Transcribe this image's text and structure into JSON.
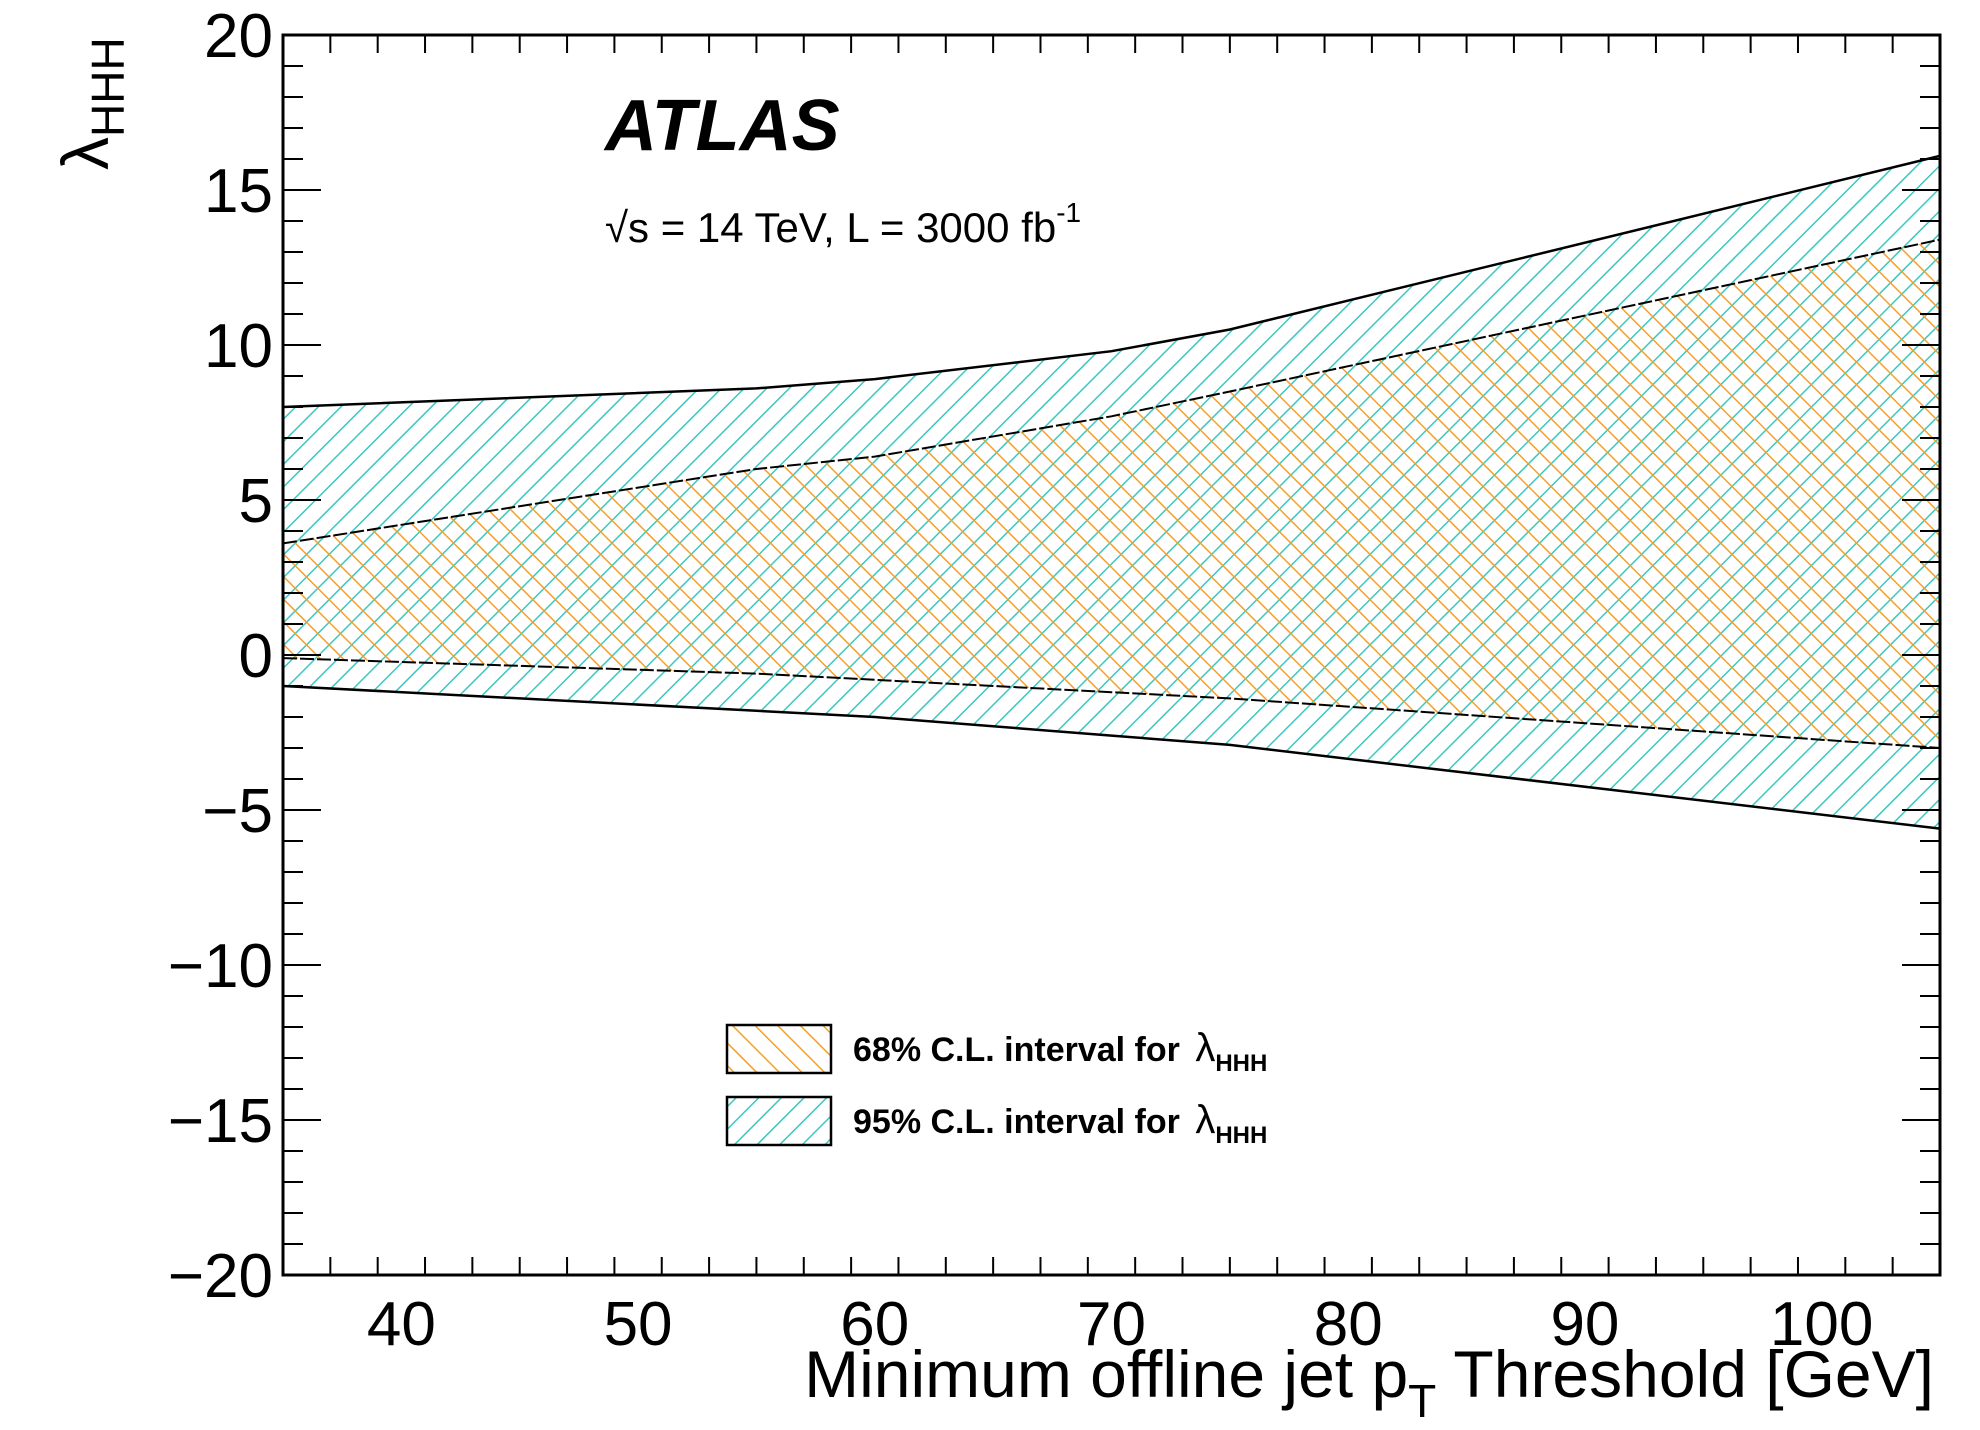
{
  "chart_data": {
    "type": "area",
    "title": "",
    "brand": "ATLAS",
    "energy_label": {
      "sqrt": "√s",
      "text": " = 14 TeV, L = 3000 fb",
      "sup": "-1"
    },
    "xlabel": {
      "main": "Minimum offline jet p",
      "sub": "T",
      "tail": " Threshold [GeV]"
    },
    "ylabel": {
      "main": "λ",
      "sub": "HHH"
    },
    "xlim": [
      35,
      105
    ],
    "ylim": [
      -20,
      20
    ],
    "x_ticks": [
      40,
      50,
      60,
      70,
      80,
      90,
      100
    ],
    "x_tick_labels": [
      "40",
      "50",
      "60",
      "70",
      "80",
      "90",
      "100"
    ],
    "y_ticks": [
      -20,
      -15,
      -10,
      -5,
      0,
      5,
      10,
      15,
      20
    ],
    "y_tick_labels": [
      "−20",
      "−15",
      "−10",
      "−5",
      "0",
      "5",
      "10",
      "15",
      "20"
    ],
    "x": [
      35,
      55,
      60,
      70,
      75,
      105
    ],
    "series": [
      {
        "name": "95% C.L. interval for λHHH",
        "color": "#3cc7c0",
        "upper": [
          8.0,
          8.6,
          8.9,
          9.8,
          10.5,
          16.1
        ],
        "lower": [
          -1.0,
          -1.8,
          -2.0,
          -2.6,
          -2.9,
          -5.6
        ]
      },
      {
        "name": "68% C.L. interval for λHHH",
        "color": "#f5a02a",
        "upper": [
          3.6,
          6.0,
          6.4,
          7.7,
          8.5,
          13.4
        ],
        "lower": [
          -0.1,
          -0.6,
          -0.8,
          -1.2,
          -1.4,
          -3.0
        ]
      }
    ],
    "legend": [
      {
        "label": "68% C.L. interval for ",
        "sym": "λ",
        "sub": "HHH",
        "color": "#f5a02a"
      },
      {
        "label": "95% C.L. interval for ",
        "sym": "λ",
        "sub": "HHH",
        "color": "#3cc7c0"
      }
    ],
    "legend_position": "bottom-center",
    "grid": false
  }
}
